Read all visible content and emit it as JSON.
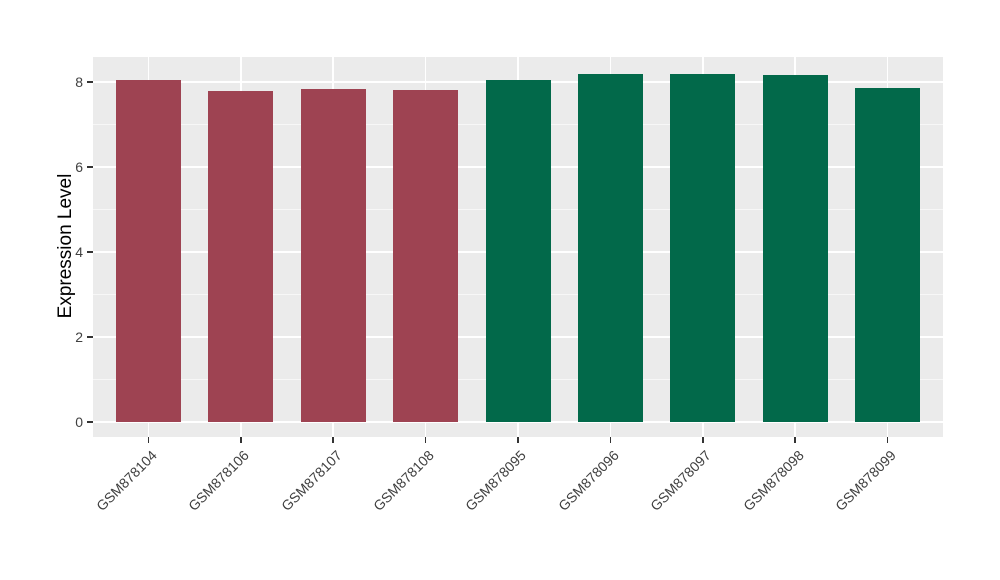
{
  "chart_data": {
    "type": "bar",
    "title": "",
    "xlabel": "",
    "ylabel": "Expression Level",
    "categories": [
      "GSM878104",
      "GSM878106",
      "GSM878107",
      "GSM878108",
      "GSM878095",
      "GSM878096",
      "GSM878097",
      "GSM878098",
      "GSM878099"
    ],
    "values": [
      8.05,
      7.79,
      7.84,
      7.81,
      8.05,
      8.19,
      8.2,
      8.17,
      7.86
    ],
    "bar_colors": [
      "#9E4352",
      "#9E4352",
      "#9E4352",
      "#9E4352",
      "#02694A",
      "#02694A",
      "#02694A",
      "#02694A",
      "#02694A"
    ],
    "group_colors": {
      "left_group": "#9E4352",
      "right_group": "#02694A"
    },
    "yticks": [
      0,
      2,
      4,
      6,
      8
    ],
    "ytick_labels": [
      "0",
      "2",
      "4",
      "6",
      "8"
    ],
    "minor_yticks": [
      1,
      3,
      5,
      7
    ],
    "ylim": [
      -0.35,
      8.59
    ],
    "bar_width_fraction": 0.7,
    "grid": true,
    "legend": false,
    "panel_bg": "#EBEBEB",
    "grid_major_color": "#FFFFFF",
    "grid_minor_color": "rgba(255,255,255,0.6)",
    "axis_text_color": "#404040"
  }
}
